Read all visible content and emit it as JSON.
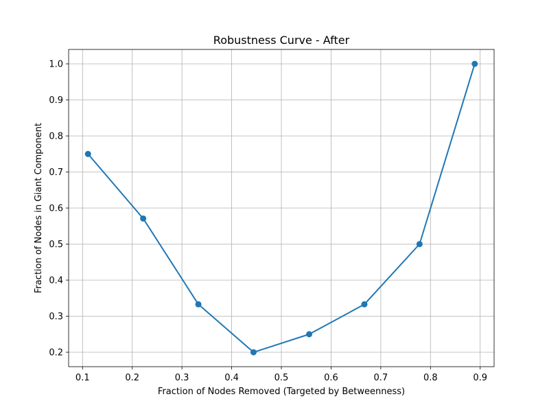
{
  "chart_data": {
    "type": "line",
    "title": "Robustness Curve - After",
    "xlabel": "Fraction of Nodes Removed (Targeted by Betweenness)",
    "ylabel": "Fraction of Nodes in Giant Component",
    "x": [
      0.111,
      0.222,
      0.333,
      0.444,
      0.556,
      0.667,
      0.778,
      0.889
    ],
    "series": [
      {
        "values": [
          0.75,
          0.571,
          0.333,
          0.2,
          0.25,
          0.333,
          0.5,
          1.0
        ],
        "color": "#1f77b4",
        "marker": "circle"
      }
    ],
    "xlim": [
      0.072,
      0.928
    ],
    "ylim": [
      0.16,
      1.04
    ],
    "xticks": [
      0.1,
      0.2,
      0.3,
      0.4,
      0.5,
      0.6,
      0.7,
      0.8,
      0.9
    ],
    "xtick_labels": [
      "0.1",
      "0.2",
      "0.3",
      "0.4",
      "0.5",
      "0.6",
      "0.7",
      "0.8",
      "0.9"
    ],
    "yticks": [
      0.2,
      0.3,
      0.4,
      0.5,
      0.6,
      0.7,
      0.8,
      0.9,
      1.0
    ],
    "ytick_labels": [
      "0.2",
      "0.3",
      "0.4",
      "0.5",
      "0.6",
      "0.7",
      "0.8",
      "0.9",
      "1.0"
    ],
    "grid": true,
    "legend": false
  }
}
